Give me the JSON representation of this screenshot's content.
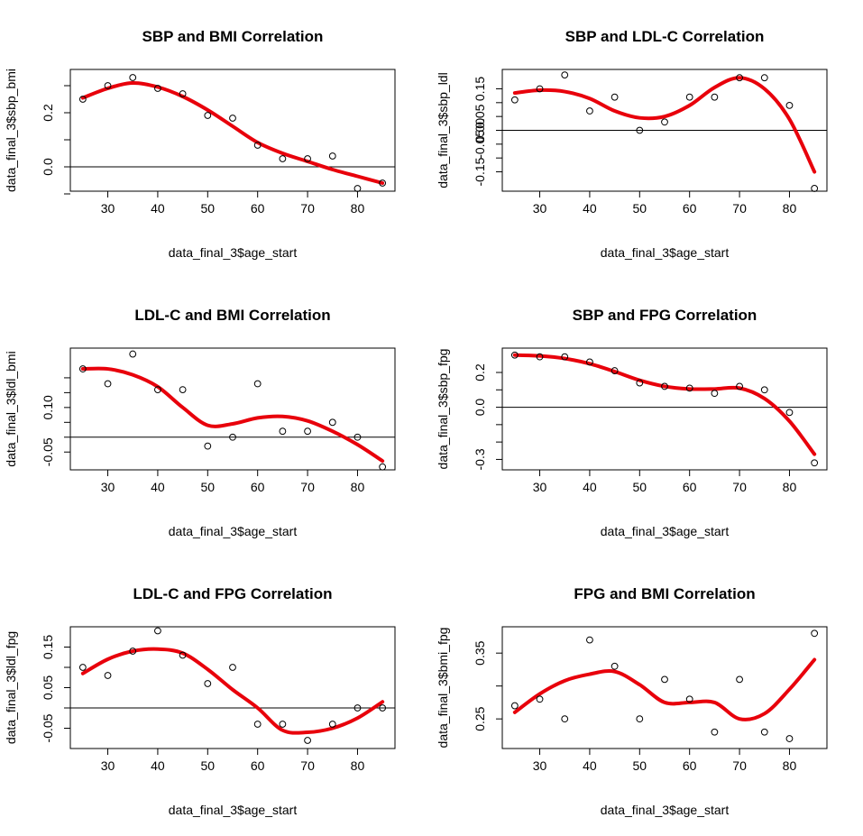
{
  "chart_data": [
    {
      "type": "scatter",
      "title": "SBP and BMI Correlation",
      "xlabel": "data_final_3$age_start",
      "ylabel": "data_final_3$sbp_bmi",
      "xlim": [
        22.5,
        87.5
      ],
      "ylim": [
        -0.09,
        0.36
      ],
      "xticks": [
        30,
        40,
        50,
        60,
        70,
        80
      ],
      "yticks": [
        0.0,
        0.2
      ],
      "yticks_minor": [
        -0.1,
        0.1,
        0.3
      ],
      "ytick_labels": [
        "0.0",
        "0.2"
      ],
      "hline": 0,
      "points": {
        "x": [
          25,
          30,
          35,
          40,
          45,
          50,
          55,
          60,
          65,
          70,
          75,
          80,
          85
        ],
        "y": [
          0.25,
          0.3,
          0.33,
          0.29,
          0.27,
          0.19,
          0.18,
          0.08,
          0.03,
          0.03,
          0.04,
          -0.08,
          -0.06
        ]
      },
      "smooth": {
        "x": [
          25,
          30,
          35,
          40,
          45,
          50,
          55,
          60,
          65,
          70,
          75,
          80,
          85
        ],
        "y": [
          0.255,
          0.29,
          0.31,
          0.295,
          0.26,
          0.21,
          0.15,
          0.09,
          0.05,
          0.02,
          -0.01,
          -0.035,
          -0.06
        ]
      }
    },
    {
      "type": "scatter",
      "title": "SBP and LDL-C Correlation",
      "xlabel": "data_final_3$age_start",
      "ylabel": "data_final_3$sbp_ldl",
      "xlim": [
        22.5,
        87.5
      ],
      "ylim": [
        -0.22,
        0.22
      ],
      "xticks": [
        30,
        40,
        50,
        60,
        70,
        80
      ],
      "yticks": [
        -0.15,
        0.0,
        0.15
      ],
      "yticks_minor": [
        -0.1,
        -0.05,
        0.05,
        0.1
      ],
      "ytick_labels": [
        "-0.15",
        "-0.05",
        "0.00",
        "0.05",
        "0.15"
      ],
      "ytick_label_values": [
        -0.15,
        -0.05,
        0.0,
        0.05,
        0.15
      ],
      "hline": 0,
      "points": {
        "x": [
          25,
          30,
          35,
          40,
          45,
          50,
          55,
          60,
          65,
          70,
          75,
          80,
          85
        ],
        "y": [
          0.11,
          0.15,
          0.2,
          0.07,
          0.12,
          0.0,
          0.03,
          0.12,
          0.12,
          0.19,
          0.19,
          0.09,
          -0.21
        ]
      },
      "smooth": {
        "x": [
          25,
          30,
          35,
          40,
          45,
          50,
          55,
          60,
          65,
          70,
          75,
          80,
          85
        ],
        "y": [
          0.135,
          0.145,
          0.14,
          0.115,
          0.07,
          0.045,
          0.05,
          0.09,
          0.155,
          0.19,
          0.15,
          0.04,
          -0.15
        ]
      }
    },
    {
      "type": "scatter",
      "title": "LDL-C and BMI Correlation",
      "xlabel": "data_final_3$age_start",
      "ylabel": "data_final_3$ldl_bmi",
      "xlim": [
        22.5,
        87.5
      ],
      "ylim": [
        -0.11,
        0.3
      ],
      "xticks": [
        30,
        40,
        50,
        60,
        70,
        80
      ],
      "yticks": [
        -0.05,
        0.1
      ],
      "yticks_minor": [
        0.0,
        0.05,
        0.15,
        0.2
      ],
      "ytick_labels": [
        "-0.05",
        "0.10"
      ],
      "hline": 0,
      "points": {
        "x": [
          25,
          30,
          35,
          40,
          45,
          50,
          55,
          60,
          65,
          70,
          75,
          80,
          85
        ],
        "y": [
          0.23,
          0.18,
          0.28,
          0.16,
          0.16,
          -0.03,
          0.0,
          0.18,
          0.02,
          0.02,
          0.05,
          0.0,
          -0.1
        ]
      },
      "smooth": {
        "x": [
          25,
          30,
          35,
          40,
          45,
          50,
          55,
          60,
          65,
          70,
          75,
          80,
          85
        ],
        "y": [
          0.23,
          0.23,
          0.21,
          0.17,
          0.1,
          0.04,
          0.045,
          0.065,
          0.07,
          0.055,
          0.02,
          -0.025,
          -0.08
        ]
      }
    },
    {
      "type": "scatter",
      "title": "SBP and FPG Correlation",
      "xlabel": "data_final_3$age_start",
      "ylabel": "data_final_3$sbp_fpg",
      "xlim": [
        22.5,
        87.5
      ],
      "ylim": [
        -0.36,
        0.34
      ],
      "xticks": [
        30,
        40,
        50,
        60,
        70,
        80
      ],
      "yticks": [
        -0.3,
        0.0,
        0.2
      ],
      "yticks_minor": [
        -0.2,
        -0.1,
        0.1
      ],
      "ytick_labels": [
        "-0.3",
        "0.0",
        "0.2"
      ],
      "hline": 0,
      "points": {
        "x": [
          25,
          30,
          35,
          40,
          45,
          50,
          55,
          60,
          65,
          70,
          75,
          80,
          85
        ],
        "y": [
          0.3,
          0.29,
          0.29,
          0.26,
          0.21,
          0.14,
          0.12,
          0.11,
          0.08,
          0.12,
          0.1,
          -0.03,
          -0.32
        ]
      },
      "smooth": {
        "x": [
          25,
          30,
          35,
          40,
          45,
          50,
          55,
          60,
          65,
          70,
          75,
          80,
          85
        ],
        "y": [
          0.3,
          0.295,
          0.28,
          0.25,
          0.205,
          0.155,
          0.12,
          0.105,
          0.105,
          0.11,
          0.05,
          -0.08,
          -0.27
        ]
      }
    },
    {
      "type": "scatter",
      "title": "LDL-C and FPG Correlation",
      "xlabel": "data_final_3$age_start",
      "ylabel": "data_final_3$ldl_fpg",
      "xlim": [
        22.5,
        87.5
      ],
      "ylim": [
        -0.1,
        0.2
      ],
      "xticks": [
        30,
        40,
        50,
        60,
        70,
        80
      ],
      "yticks": [
        -0.05,
        0.05,
        0.15
      ],
      "yticks_minor": [
        0.0,
        0.1
      ],
      "ytick_labels": [
        "-0.05",
        "0.05",
        "0.15"
      ],
      "hline": 0,
      "points": {
        "x": [
          25,
          30,
          35,
          40,
          45,
          50,
          55,
          60,
          65,
          70,
          75,
          80,
          85
        ],
        "y": [
          0.1,
          0.08,
          0.14,
          0.19,
          0.13,
          0.06,
          0.1,
          -0.04,
          -0.04,
          -0.08,
          -0.04,
          0.0,
          0.0
        ]
      },
      "smooth": {
        "x": [
          25,
          30,
          35,
          40,
          45,
          50,
          55,
          60,
          65,
          70,
          75,
          80,
          85
        ],
        "y": [
          0.085,
          0.12,
          0.14,
          0.145,
          0.135,
          0.095,
          0.045,
          0.0,
          -0.055,
          -0.06,
          -0.05,
          -0.025,
          0.015
        ]
      }
    },
    {
      "type": "scatter",
      "title": "FPG and BMI Correlation",
      "xlabel": "data_final_3$age_start",
      "ylabel": "data_final_3$bmi_fpg",
      "xlim": [
        22.5,
        87.5
      ],
      "ylim": [
        0.205,
        0.39
      ],
      "xticks": [
        30,
        40,
        50,
        60,
        70,
        80
      ],
      "yticks": [
        0.25,
        0.35
      ],
      "yticks_minor": [
        0.3
      ],
      "ytick_labels": [
        "0.25",
        "0.35"
      ],
      "hline": null,
      "points": {
        "x": [
          25,
          30,
          35,
          40,
          45,
          50,
          55,
          60,
          65,
          70,
          75,
          80,
          85
        ],
        "y": [
          0.27,
          0.28,
          0.25,
          0.37,
          0.33,
          0.25,
          0.31,
          0.28,
          0.23,
          0.31,
          0.23,
          0.22,
          0.38
        ]
      },
      "smooth": {
        "x": [
          25,
          30,
          35,
          40,
          45,
          50,
          55,
          60,
          65,
          70,
          75,
          80,
          85
        ],
        "y": [
          0.26,
          0.288,
          0.308,
          0.318,
          0.322,
          0.302,
          0.275,
          0.275,
          0.275,
          0.25,
          0.258,
          0.295,
          0.34
        ]
      }
    }
  ]
}
